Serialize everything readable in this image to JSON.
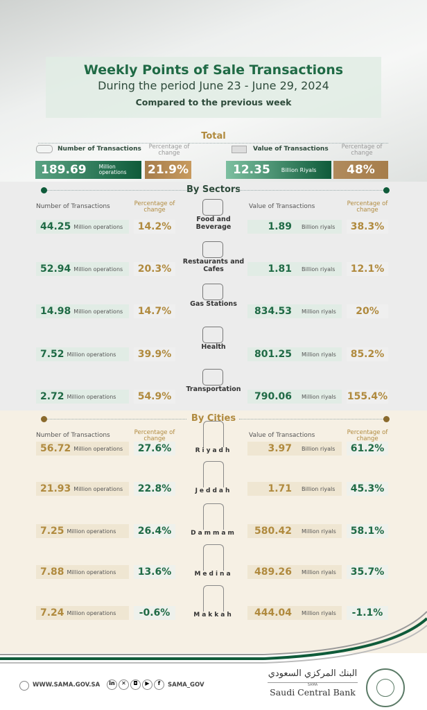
{
  "header": {
    "title": "Weekly Points of Sale Transactions",
    "subtitle": "During the period June 23 - June 29, 2024",
    "compared": "Compared to the previous week"
  },
  "total": {
    "heading": "Total",
    "num_label": "Number of Transactions",
    "pct_label": "Percentage of change",
    "num_value": "189.69",
    "num_unit": "Million operations",
    "num_pct": "21.9%",
    "val_label": "Value of Transactions",
    "val_value": "12.35",
    "val_unit": "Billion Riyals",
    "val_pct": "48%"
  },
  "sectors": {
    "heading": "By Sectors",
    "num_label": "Number of Transactions",
    "pct_label": "Percentage of change",
    "val_label": "Value of Transactions",
    "rows": [
      {
        "name": "Food and Beverage",
        "icon": "food-bowl-icon",
        "num": "44.25",
        "num_unit": "Million operations",
        "num_pct": "14.2%",
        "val": "1.89",
        "val_unit": "Billion riyals",
        "val_pct": "38.3%"
      },
      {
        "name": "Restaurants and Cafes",
        "icon": "restaurant-icon",
        "num": "52.94",
        "num_unit": "Million operations",
        "num_pct": "20.3%",
        "val": "1.81",
        "val_unit": "Billion riyals",
        "val_pct": "12.1%"
      },
      {
        "name": "Gas Stations",
        "icon": "fuel-pump-icon",
        "num": "14.98",
        "num_unit": "Million operations",
        "num_pct": "14.7%",
        "val": "834.53",
        "val_unit": "Million riyals",
        "val_pct": "20%"
      },
      {
        "name": "Health",
        "icon": "heart-pulse-icon",
        "num": "7.52",
        "num_unit": "Million operations",
        "num_pct": "39.9%",
        "val": "801.25",
        "val_unit": "Million riyals",
        "val_pct": "85.2%"
      },
      {
        "name": "Transportation",
        "icon": "truck-icon",
        "num": "2.72",
        "num_unit": "Million operations",
        "num_pct": "54.9%",
        "val": "790.06",
        "val_unit": "Million riyals",
        "val_pct": "155.4%"
      }
    ]
  },
  "cities": {
    "heading": "By Cities",
    "num_label": "Number of Transactions",
    "pct_label": "Percentage of change",
    "val_label": "Value of Transactions",
    "rows": [
      {
        "name": "Riyadh",
        "icon": "kingdom-tower-icon",
        "num": "56.72",
        "num_unit": "Million operations",
        "num_pct": "27.6%",
        "val": "3.97",
        "val_unit": "Billion riyals",
        "val_pct": "61.2%"
      },
      {
        "name": "Jeddah",
        "icon": "jeddah-tower-icon",
        "num": "21.93",
        "num_unit": "Million operations",
        "num_pct": "22.8%",
        "val": "1.71",
        "val_unit": "Billion riyals",
        "val_pct": "45.3%"
      },
      {
        "name": "Dammam",
        "icon": "dammam-tower-icon",
        "num": "7.25",
        "num_unit": "Million operations",
        "num_pct": "26.4%",
        "val": "580.42",
        "val_unit": "Million riyals",
        "val_pct": "58.1%"
      },
      {
        "name": "Medina",
        "icon": "mosque-icon",
        "num": "7.88",
        "num_unit": "Million operations",
        "num_pct": "13.6%",
        "val": "489.26",
        "val_unit": "Million riyals",
        "val_pct": "35.7%"
      },
      {
        "name": "Makkah",
        "icon": "haram-icon",
        "num": "7.24",
        "num_unit": "Million operations",
        "num_pct": "-0.6%",
        "val": "444.04",
        "val_unit": "Million riyals",
        "val_pct": "-1.1%"
      }
    ]
  },
  "footer": {
    "website": "WWW.SAMA.GOV.SA",
    "handle": "SAMA_GOV",
    "bank_name": "Saudi Central Bank",
    "bank_abbr": "SAMA",
    "bank_name_ar": "البنك المركزي السعودي"
  },
  "colors": {
    "green": "#1f6a45",
    "gold": "#b08a3e",
    "sector_bg": "#ececec",
    "city_bg": "#f6f0e4"
  }
}
